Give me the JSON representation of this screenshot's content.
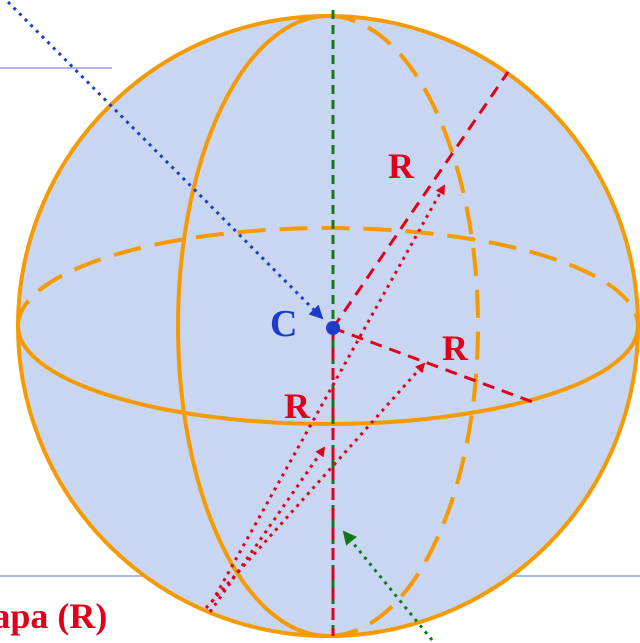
{
  "diagram": {
    "center_label": "C",
    "radius_labels": [
      "R",
      "R",
      "R"
    ],
    "caption_fragment": "шара (R)",
    "colors": {
      "sphere_fill": "#c8d6f2",
      "sphere_outline": "#f59a00",
      "center_and_pointer": "#1e3cc8",
      "radius_lines": "#e0001a",
      "vertical_axis": "#0f7a14",
      "background_rules": "#8fa0e6"
    }
  }
}
